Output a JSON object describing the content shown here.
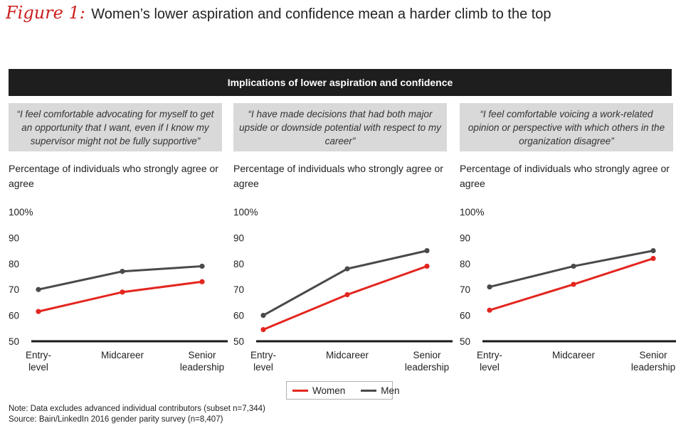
{
  "figure": {
    "label": "Figure 1:",
    "title": "Women’s lower aspiration and confidence mean a harder climb to the top"
  },
  "banner": "Implications of lower aspiration and confidence",
  "legend": [
    {
      "name": "Women",
      "color": "#e3261f"
    },
    {
      "name": "Men",
      "color": "#4a4a4a"
    }
  ],
  "notes": {
    "note": "Note: Data excludes advanced individual contributors (subset n=7,344)",
    "source": "Source: Bain/LinkedIn 2016 gender parity survey (n=8,407)"
  },
  "chart_data": [
    {
      "type": "line",
      "quote": "“I feel comfortable advocating for myself to get an opportunity that I want, even if I know my supervisor might not be fully supportive”",
      "title": "Percentage of individuals who strongly agree or agree",
      "categories": [
        [
          "Entry-",
          "level"
        ],
        [
          "Midcareer"
        ],
        [
          "Senior",
          "leadership"
        ]
      ],
      "y_ticks": [
        "100%",
        "90",
        "80",
        "70",
        "60",
        "50"
      ],
      "ylim": [
        50,
        100
      ],
      "series": [
        {
          "name": "Women",
          "color": "#e3261f",
          "values": [
            61.5,
            69,
            73
          ]
        },
        {
          "name": "Men",
          "color": "#4a4a4a",
          "values": [
            70,
            77,
            79
          ]
        }
      ]
    },
    {
      "type": "line",
      "quote": "“I have made decisions that had both major upside or downside potential with respect to my career”",
      "title": "Percentage of individuals who strongly agree or agree",
      "categories": [
        [
          "Entry-",
          "level"
        ],
        [
          "Midcareer"
        ],
        [
          "Senior",
          "leadership"
        ]
      ],
      "y_ticks": [
        "100%",
        "90",
        "80",
        "70",
        "60",
        "50"
      ],
      "ylim": [
        50,
        100
      ],
      "series": [
        {
          "name": "Women",
          "color": "#e3261f",
          "values": [
            54.5,
            68,
            79
          ]
        },
        {
          "name": "Men",
          "color": "#4a4a4a",
          "values": [
            60,
            78,
            85
          ]
        }
      ]
    },
    {
      "type": "line",
      "quote": "“I feel comfortable voicing a work-related opinion or perspective with which others in the organization disagree”",
      "title": "Percentage of individuals who strongly agree or agree",
      "categories": [
        [
          "Entry-",
          "level"
        ],
        [
          "Midcareer"
        ],
        [
          "Senior",
          "leadership"
        ]
      ],
      "y_ticks": [
        "100%",
        "90",
        "80",
        "70",
        "60",
        "50"
      ],
      "ylim": [
        50,
        100
      ],
      "series": [
        {
          "name": "Women",
          "color": "#e3261f",
          "values": [
            62,
            72,
            82
          ]
        },
        {
          "name": "Men",
          "color": "#4a4a4a",
          "values": [
            71,
            79,
            85
          ]
        }
      ]
    }
  ]
}
